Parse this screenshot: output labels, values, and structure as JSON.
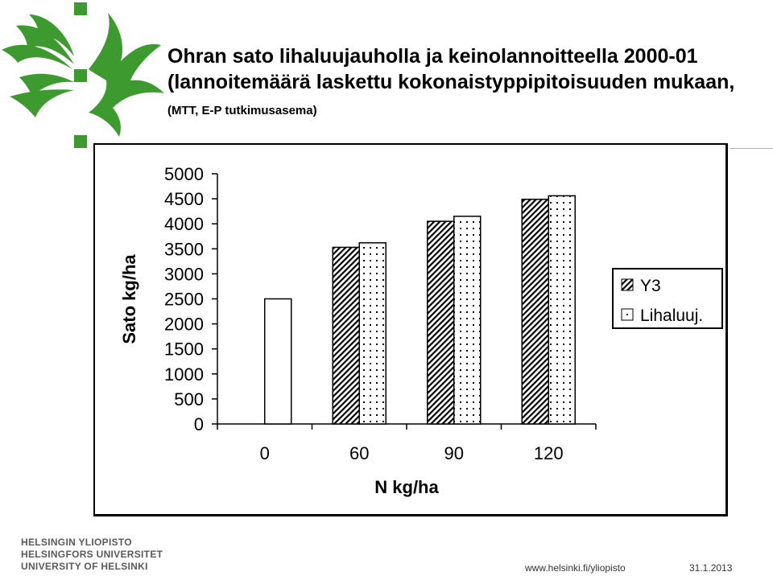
{
  "slide": {
    "title_main": "Ohran sato lihaluujauholla ja keinolannoitteella 2000-01 (lannoitemäärä laskettu kokonaistyppipitoisuuden mukaan,",
    "title_sub": "(MTT, E-P tutkimusasema)"
  },
  "footer": {
    "university_fi": "HELSINGIN YLIOPISTO",
    "university_sv": "HELSINGFORS UNIVERSITET",
    "university_en": "UNIVERSITY OF HELSINKI",
    "url": "www.helsinki.fi/yliopisto",
    "date": "31.1.2013"
  },
  "colors": {
    "logo": "#3c9a2f",
    "text": "#000000",
    "bar_fill": "#ffffff"
  },
  "chart_data": {
    "type": "bar",
    "categories": [
      "0",
      "60",
      "90",
      "120"
    ],
    "series": [
      {
        "name": "Y3",
        "values": [
          null,
          3530,
          4050,
          4490
        ],
        "pattern": "diagonal-hatch"
      },
      {
        "name": "Lihaluuj.",
        "values": [
          2500,
          3620,
          4150,
          4560
        ],
        "pattern": "dots"
      }
    ],
    "xlabel": "N kg/ha",
    "ylabel": "Sato kg/ha",
    "ylim": [
      0,
      5000
    ],
    "yticks": [
      "0",
      "500",
      "1000",
      "1500",
      "2000",
      "2500",
      "3000",
      "3500",
      "4000",
      "4500",
      "5000"
    ],
    "grid": false,
    "legend": "right"
  }
}
